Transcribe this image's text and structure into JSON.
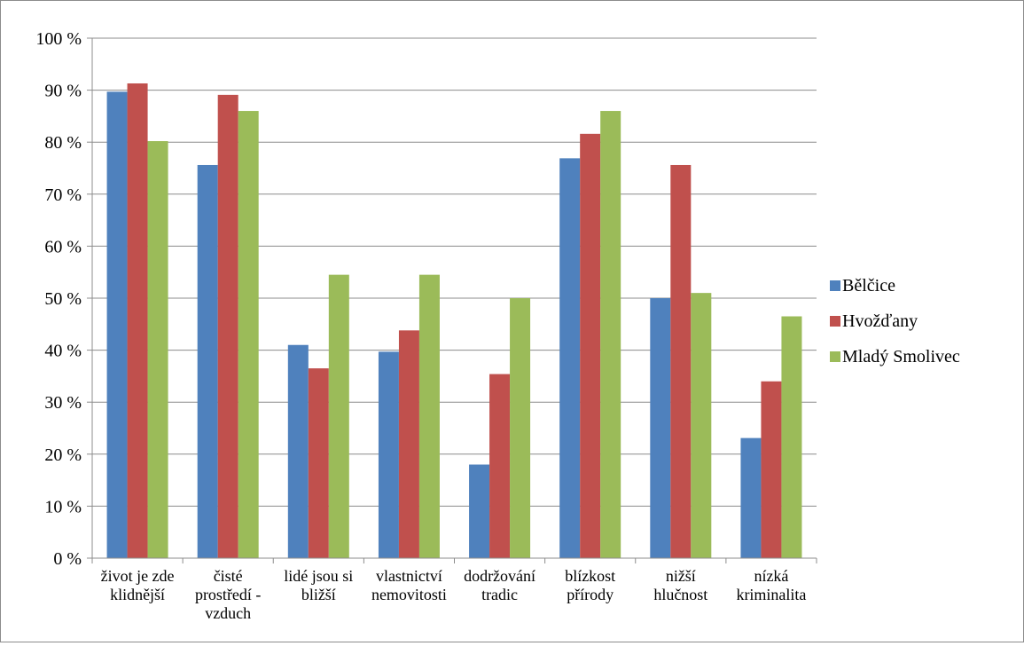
{
  "chart_data": {
    "type": "bar",
    "title": "",
    "xlabel": "",
    "ylabel": "",
    "ylim": [
      0,
      100
    ],
    "grid": true,
    "legend_position": "right",
    "y_ticks": [
      "0 %",
      "10 %",
      "20 %",
      "30 %",
      "40 %",
      "50 %",
      "60 %",
      "70 %",
      "80 %",
      "90 %",
      "100 %"
    ],
    "categories": [
      [
        "život je zde",
        "klidnější"
      ],
      [
        "čisté",
        "prostředí -",
        "vzduch"
      ],
      [
        "lidé jsou si",
        "bližší"
      ],
      [
        "vlastnictví",
        "nemovitosti"
      ],
      [
        "dodržování",
        "tradic"
      ],
      [
        "blízkost",
        "přírody"
      ],
      [
        "nižší",
        "hlučnost"
      ],
      [
        "nízká",
        "kriminalita"
      ]
    ],
    "series": [
      {
        "name": "Bělčice",
        "color": "#4f81bd",
        "values": [
          89.7,
          75.6,
          41.0,
          39.7,
          18.0,
          76.9,
          50.0,
          23.1
        ]
      },
      {
        "name": "Hvožďany",
        "color": "#c0504d",
        "values": [
          91.3,
          89.1,
          36.5,
          43.8,
          35.4,
          81.6,
          75.6,
          34.0
        ]
      },
      {
        "name": "Mladý Smolivec",
        "color": "#9bbb59",
        "values": [
          80.2,
          86.0,
          54.5,
          54.5,
          50.0,
          86.0,
          51.0,
          46.5
        ]
      }
    ]
  }
}
